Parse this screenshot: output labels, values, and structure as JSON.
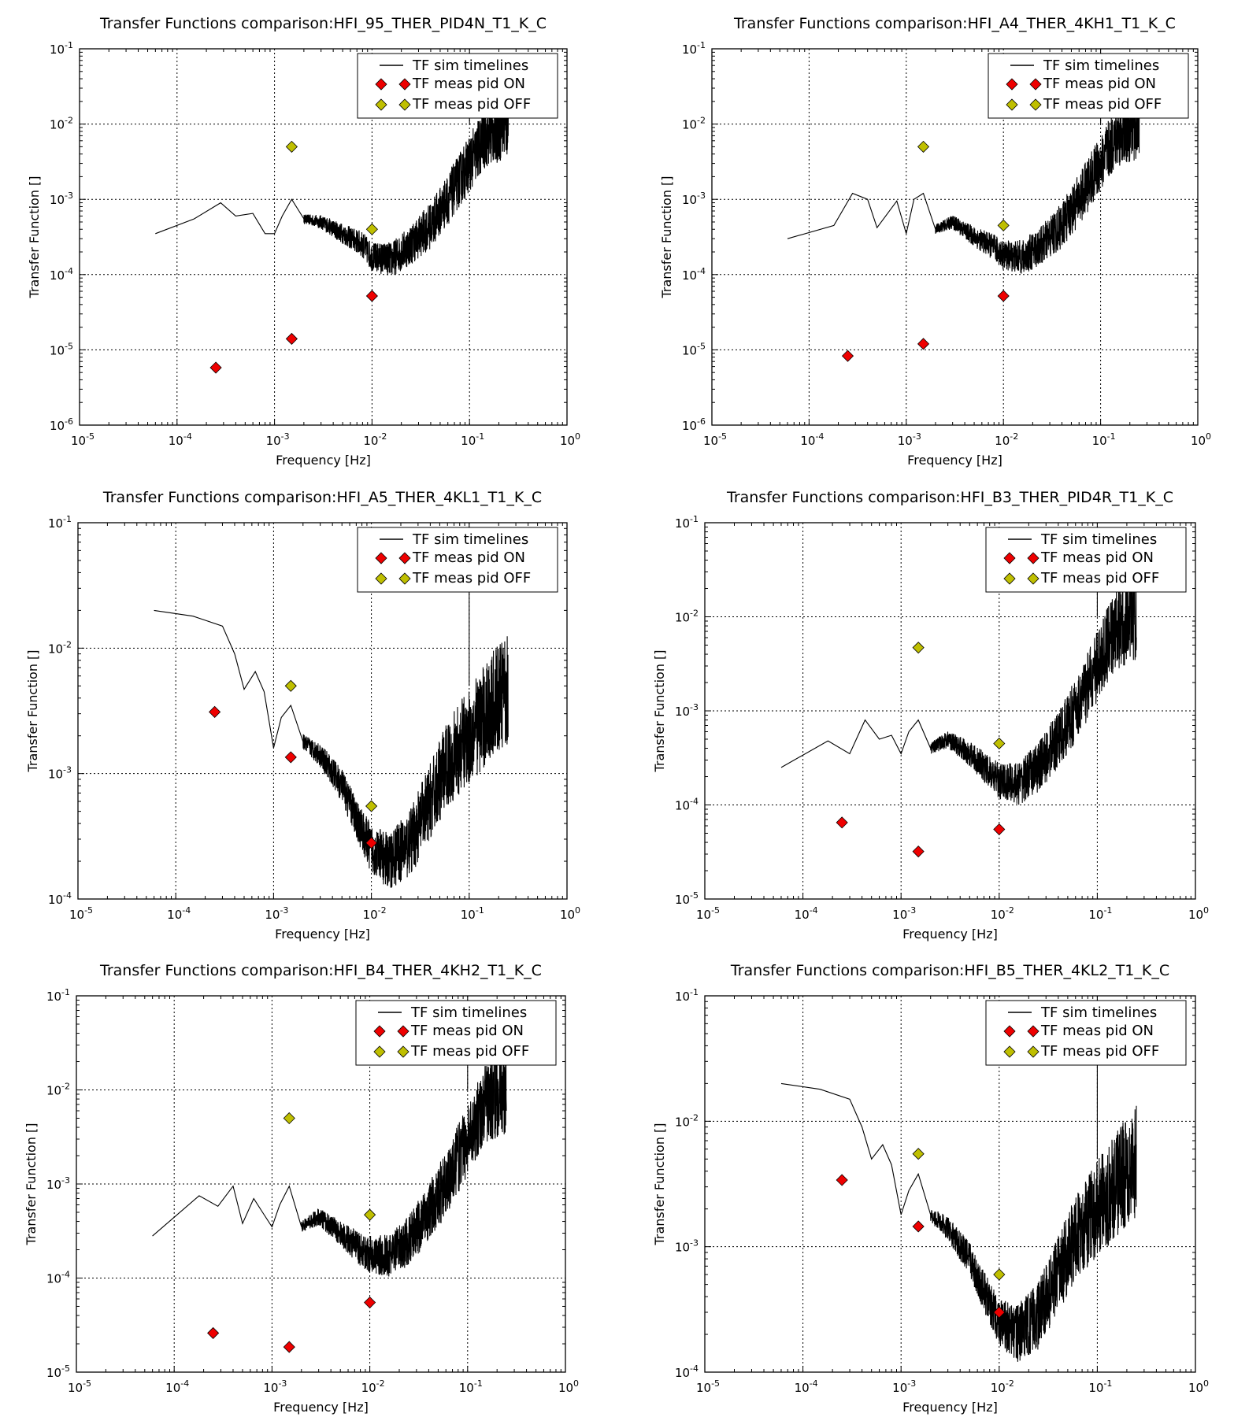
{
  "figure": {
    "ylabel": "Transfer Function []",
    "xlabel": "Frequency [Hz]"
  },
  "legend": {
    "sim": "TF sim timelines",
    "on": "TF meas pid ON",
    "off": "TF meas pid OFF"
  },
  "colors": {
    "on": "#ee0000",
    "off": "#bfbf00",
    "line": "#000000",
    "grid": "#000000"
  },
  "chart_data": [
    {
      "type": "line",
      "title": "Transfer Functions comparison:HFI_95_THER_PID4N_T1_K_C",
      "xlabel": "Frequency [Hz]",
      "ylabel": "Transfer Function []",
      "xscale": "log",
      "yscale": "log",
      "xlim": [
        1e-05,
        1
      ],
      "ylim": [
        1e-06,
        0.1
      ],
      "x_tick_exponents": [
        -5,
        -4,
        -3,
        -2,
        -1,
        0
      ],
      "y_tick_exponents": [
        -6,
        -5,
        -4,
        -3,
        -2,
        -1
      ],
      "grid": true,
      "legend_position": "top-right",
      "series": [
        {
          "name": "TF sim timelines",
          "kind": "line",
          "x": [
            6e-05,
            0.00015,
            0.00028,
            0.0004,
            0.0006,
            0.0008,
            0.001,
            0.0012,
            0.0015,
            0.002,
            0.003,
            0.005,
            0.008,
            0.01,
            0.016,
            0.025,
            0.04,
            0.06,
            0.1,
            0.15,
            0.25
          ],
          "y": [
            0.00035,
            0.00055,
            0.0009,
            0.0006,
            0.00065,
            0.00035,
            0.00035,
            0.0006,
            0.001,
            0.00055,
            0.0005,
            0.00035,
            0.00025,
            0.00017,
            0.00016,
            0.00025,
            0.00045,
            0.001,
            0.003,
            0.007,
            0.01
          ]
        },
        {
          "name": "TF meas pid ON",
          "kind": "marker",
          "x": [
            0.00025,
            0.0015,
            0.01
          ],
          "y": [
            5.8e-06,
            1.4e-05,
            5.2e-05
          ]
        },
        {
          "name": "TF meas pid OFF",
          "kind": "marker",
          "x": [
            0.0015,
            0.01
          ],
          "y": [
            0.005,
            0.0004
          ]
        }
      ]
    },
    {
      "type": "line",
      "title": "Transfer Functions comparison:HFI_A4_THER_4KH1_T1_K_C",
      "xlabel": "Frequency [Hz]",
      "ylabel": "Transfer Function []",
      "xscale": "log",
      "yscale": "log",
      "xlim": [
        1e-05,
        1
      ],
      "ylim": [
        1e-06,
        0.1
      ],
      "x_tick_exponents": [
        -5,
        -4,
        -3,
        -2,
        -1,
        0
      ],
      "y_tick_exponents": [
        -6,
        -5,
        -4,
        -3,
        -2,
        -1
      ],
      "grid": true,
      "legend_position": "top-right",
      "series": [
        {
          "name": "TF sim timelines",
          "kind": "line",
          "x": [
            6e-05,
            0.00018,
            0.00028,
            0.0004,
            0.0005,
            0.0008,
            0.001,
            0.0012,
            0.0015,
            0.002,
            0.003,
            0.005,
            0.008,
            0.01,
            0.016,
            0.025,
            0.04,
            0.06,
            0.1,
            0.15,
            0.25
          ],
          "y": [
            0.0003,
            0.00045,
            0.0012,
            0.001,
            0.00042,
            0.00095,
            0.00035,
            0.001,
            0.0012,
            0.0004,
            0.0005,
            0.00032,
            0.00023,
            0.00018,
            0.00017,
            0.00025,
            0.00045,
            0.001,
            0.003,
            0.007,
            0.01
          ]
        },
        {
          "name": "TF meas pid ON",
          "kind": "marker",
          "x": [
            0.00025,
            0.0015,
            0.01
          ],
          "y": [
            8.3e-06,
            1.2e-05,
            5.2e-05
          ]
        },
        {
          "name": "TF meas pid OFF",
          "kind": "marker",
          "x": [
            0.0015,
            0.01
          ],
          "y": [
            0.005,
            0.00045
          ]
        }
      ]
    },
    {
      "type": "line",
      "title": "Transfer Functions comparison:HFI_A5_THER_4KL1_T1_K_C",
      "xlabel": "Frequency [Hz]",
      "ylabel": "Transfer Function []",
      "xscale": "log",
      "yscale": "log",
      "xlim": [
        1e-05,
        1
      ],
      "ylim": [
        0.0001,
        0.1
      ],
      "x_tick_exponents": [
        -5,
        -4,
        -3,
        -2,
        -1,
        0
      ],
      "y_tick_exponents": [
        -4,
        -3,
        -2,
        -1
      ],
      "grid": true,
      "legend_position": "top-right",
      "series": [
        {
          "name": "TF sim timelines",
          "kind": "line",
          "x": [
            6e-05,
            0.00015,
            0.0003,
            0.0004,
            0.0005,
            0.00065,
            0.0008,
            0.001,
            0.0012,
            0.0015,
            0.002,
            0.003,
            0.005,
            0.008,
            0.01,
            0.015,
            0.025,
            0.04,
            0.06,
            0.1,
            0.25
          ],
          "y": [
            0.02,
            0.018,
            0.015,
            0.009,
            0.0047,
            0.0065,
            0.0045,
            0.0016,
            0.0028,
            0.0035,
            0.0018,
            0.0014,
            0.0008,
            0.00035,
            0.00025,
            0.0002,
            0.00028,
            0.0006,
            0.0012,
            0.002,
            0.005
          ]
        },
        {
          "name": "TF meas pid ON",
          "kind": "marker",
          "x": [
            0.00025,
            0.0015,
            0.01
          ],
          "y": [
            0.0031,
            0.00135,
            0.00028
          ]
        },
        {
          "name": "TF meas pid OFF",
          "kind": "marker",
          "x": [
            0.0015,
            0.01
          ],
          "y": [
            0.005,
            0.00055
          ]
        }
      ]
    },
    {
      "type": "line",
      "title": "Transfer Functions comparison:HFI_B3_THER_PID4R_T1_K_C",
      "xlabel": "Frequency [Hz]",
      "ylabel": "Transfer Function []",
      "xscale": "log",
      "yscale": "log",
      "xlim": [
        1e-05,
        1
      ],
      "ylim": [
        1e-05,
        0.1
      ],
      "x_tick_exponents": [
        -5,
        -4,
        -3,
        -2,
        -1,
        0
      ],
      "y_tick_exponents": [
        -5,
        -4,
        -3,
        -2,
        -1
      ],
      "grid": true,
      "legend_position": "top-right",
      "series": [
        {
          "name": "TF sim timelines",
          "kind": "line",
          "x": [
            6e-05,
            0.00018,
            0.0003,
            0.00043,
            0.0006,
            0.0008,
            0.001,
            0.0012,
            0.0015,
            0.002,
            0.003,
            0.005,
            0.008,
            0.01,
            0.016,
            0.025,
            0.04,
            0.06,
            0.1,
            0.15,
            0.25
          ],
          "y": [
            0.00025,
            0.00048,
            0.00035,
            0.0008,
            0.0005,
            0.00055,
            0.00035,
            0.0006,
            0.0008,
            0.0004,
            0.0005,
            0.00035,
            0.00022,
            0.00018,
            0.00017,
            0.00025,
            0.0005,
            0.001,
            0.003,
            0.007,
            0.01
          ]
        },
        {
          "name": "TF meas pid ON",
          "kind": "marker",
          "x": [
            0.00025,
            0.0015,
            0.01
          ],
          "y": [
            6.5e-05,
            3.2e-05,
            5.5e-05
          ]
        },
        {
          "name": "TF meas pid OFF",
          "kind": "marker",
          "x": [
            0.0015,
            0.01
          ],
          "y": [
            0.0047,
            0.00045
          ]
        }
      ]
    },
    {
      "type": "line",
      "title": "Transfer Functions comparison:HFI_B4_THER_4KH2_T1_K_C",
      "xlabel": "Frequency [Hz]",
      "ylabel": "Transfer Function []",
      "xscale": "log",
      "yscale": "log",
      "xlim": [
        1e-05,
        1
      ],
      "ylim": [
        1e-05,
        0.1
      ],
      "x_tick_exponents": [
        -5,
        -4,
        -3,
        -2,
        -1,
        0
      ],
      "y_tick_exponents": [
        -5,
        -4,
        -3,
        -2,
        -1
      ],
      "grid": true,
      "legend_position": "top-right",
      "series": [
        {
          "name": "TF sim timelines",
          "kind": "line",
          "x": [
            6e-05,
            0.00018,
            0.00028,
            0.0004,
            0.0005,
            0.00065,
            0.0008,
            0.001,
            0.0012,
            0.0015,
            0.002,
            0.003,
            0.005,
            0.008,
            0.01,
            0.016,
            0.025,
            0.04,
            0.06,
            0.1,
            0.15,
            0.25
          ],
          "y": [
            0.00028,
            0.00075,
            0.00058,
            0.00095,
            0.00038,
            0.0007,
            0.0005,
            0.00035,
            0.0006,
            0.00095,
            0.00035,
            0.00045,
            0.0003,
            0.0002,
            0.00018,
            0.00017,
            0.00025,
            0.0005,
            0.001,
            0.003,
            0.007,
            0.01
          ]
        },
        {
          "name": "TF meas pid ON",
          "kind": "marker",
          "x": [
            0.00025,
            0.0015,
            0.01
          ],
          "y": [
            2.6e-05,
            1.85e-05,
            5.5e-05
          ]
        },
        {
          "name": "TF meas pid OFF",
          "kind": "marker",
          "x": [
            0.0015,
            0.01
          ],
          "y": [
            0.005,
            0.00047
          ]
        }
      ]
    },
    {
      "type": "line",
      "title": "Transfer Functions comparison:HFI_B5_THER_4KL2_T1_K_C",
      "xlabel": "Frequency [Hz]",
      "ylabel": "Transfer Function []",
      "xscale": "log",
      "yscale": "log",
      "xlim": [
        1e-05,
        1
      ],
      "ylim": [
        0.0001,
        0.1
      ],
      "x_tick_exponents": [
        -5,
        -4,
        -3,
        -2,
        -1,
        0
      ],
      "y_tick_exponents": [
        -4,
        -3,
        -2,
        -1
      ],
      "grid": true,
      "legend_position": "top-right",
      "series": [
        {
          "name": "TF sim timelines",
          "kind": "line",
          "x": [
            6e-05,
            0.00015,
            0.0003,
            0.0004,
            0.0005,
            0.00065,
            0.0008,
            0.001,
            0.0012,
            0.0015,
            0.002,
            0.003,
            0.005,
            0.008,
            0.01,
            0.015,
            0.025,
            0.04,
            0.06,
            0.1,
            0.25
          ],
          "y": [
            0.02,
            0.018,
            0.015,
            0.009,
            0.005,
            0.0065,
            0.0045,
            0.0018,
            0.0028,
            0.0038,
            0.0018,
            0.0014,
            0.0008,
            0.00035,
            0.00025,
            0.0002,
            0.00028,
            0.0006,
            0.0012,
            0.002,
            0.005
          ]
        },
        {
          "name": "TF meas pid ON",
          "kind": "marker",
          "x": [
            0.00025,
            0.0015,
            0.01
          ],
          "y": [
            0.0034,
            0.00145,
            0.0003
          ]
        },
        {
          "name": "TF meas pid OFF",
          "kind": "marker",
          "x": [
            0.0015,
            0.01
          ],
          "y": [
            0.0055,
            0.0006
          ]
        }
      ]
    }
  ]
}
